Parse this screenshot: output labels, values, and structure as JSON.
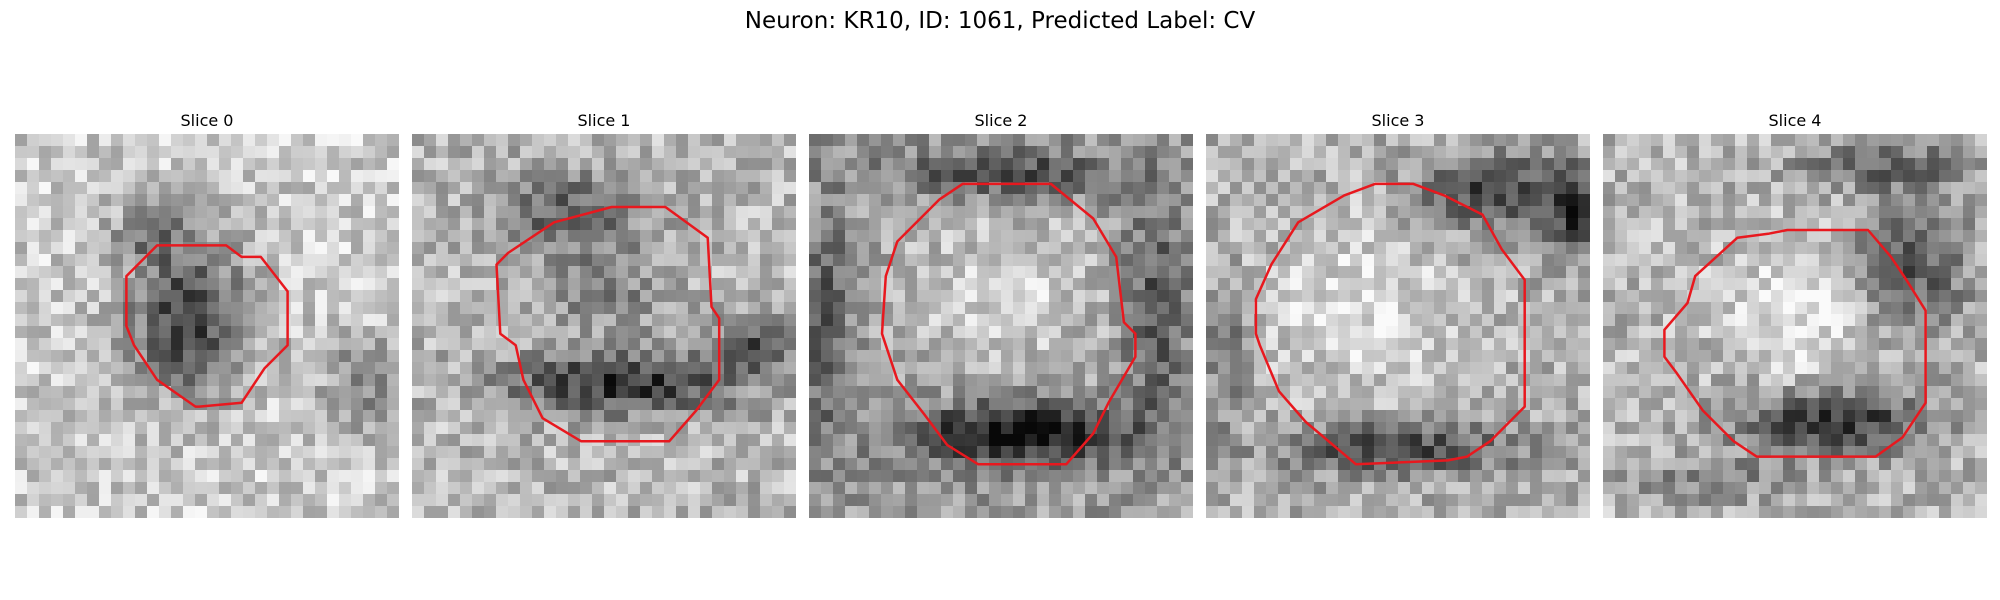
{
  "figure": {
    "title": "Neuron: KR10, ID: 1061, Predicted Label: CV"
  },
  "colors": {
    "background": "#ffffff",
    "contour": "#e8181e"
  },
  "panels": [
    {
      "title": "Slice 0",
      "contour": [
        [
          0.37,
          0.29
        ],
        [
          0.55,
          0.29
        ],
        [
          0.59,
          0.32
        ],
        [
          0.64,
          0.32
        ],
        [
          0.71,
          0.41
        ],
        [
          0.71,
          0.55
        ],
        [
          0.65,
          0.61
        ],
        [
          0.59,
          0.7
        ],
        [
          0.48,
          0.71
        ],
        [
          0.47,
          0.71
        ],
        [
          0.37,
          0.64
        ],
        [
          0.31,
          0.55
        ],
        [
          0.29,
          0.5
        ],
        [
          0.29,
          0.37
        ]
      ]
    },
    {
      "title": "Slice 1",
      "contour": [
        [
          0.37,
          0.23
        ],
        [
          0.52,
          0.19
        ],
        [
          0.66,
          0.19
        ],
        [
          0.77,
          0.27
        ],
        [
          0.78,
          0.45
        ],
        [
          0.8,
          0.48
        ],
        [
          0.8,
          0.64
        ],
        [
          0.74,
          0.72
        ],
        [
          0.67,
          0.8
        ],
        [
          0.44,
          0.8
        ],
        [
          0.34,
          0.74
        ],
        [
          0.29,
          0.64
        ],
        [
          0.27,
          0.55
        ],
        [
          0.23,
          0.52
        ],
        [
          0.22,
          0.34
        ],
        [
          0.25,
          0.31
        ]
      ]
    },
    {
      "title": "Slice 2",
      "contour": [
        [
          0.34,
          0.17
        ],
        [
          0.4,
          0.13
        ],
        [
          0.63,
          0.13
        ],
        [
          0.74,
          0.22
        ],
        [
          0.8,
          0.32
        ],
        [
          0.82,
          0.49
        ],
        [
          0.85,
          0.52
        ],
        [
          0.85,
          0.58
        ],
        [
          0.78,
          0.7
        ],
        [
          0.74,
          0.78
        ],
        [
          0.67,
          0.86
        ],
        [
          0.44,
          0.86
        ],
        [
          0.36,
          0.81
        ],
        [
          0.3,
          0.73
        ],
        [
          0.23,
          0.64
        ],
        [
          0.2,
          0.55
        ],
        [
          0.19,
          0.52
        ],
        [
          0.2,
          0.37
        ],
        [
          0.23,
          0.28
        ]
      ]
    },
    {
      "title": "Slice 3",
      "contour": [
        [
          0.36,
          0.16
        ],
        [
          0.44,
          0.13
        ],
        [
          0.54,
          0.13
        ],
        [
          0.62,
          0.16
        ],
        [
          0.72,
          0.21
        ],
        [
          0.77,
          0.3
        ],
        [
          0.83,
          0.38
        ],
        [
          0.83,
          0.71
        ],
        [
          0.74,
          0.8
        ],
        [
          0.68,
          0.84
        ],
        [
          0.63,
          0.85
        ],
        [
          0.39,
          0.86
        ],
        [
          0.26,
          0.75
        ],
        [
          0.19,
          0.67
        ],
        [
          0.14,
          0.55
        ],
        [
          0.13,
          0.52
        ],
        [
          0.13,
          0.43
        ],
        [
          0.17,
          0.34
        ],
        [
          0.24,
          0.23
        ]
      ]
    },
    {
      "title": "Slice 4",
      "contour": [
        [
          0.35,
          0.27
        ],
        [
          0.43,
          0.26
        ],
        [
          0.48,
          0.25
        ],
        [
          0.69,
          0.25
        ],
        [
          0.75,
          0.32
        ],
        [
          0.79,
          0.38
        ],
        [
          0.84,
          0.46
        ],
        [
          0.84,
          0.7
        ],
        [
          0.78,
          0.79
        ],
        [
          0.71,
          0.84
        ],
        [
          0.4,
          0.84
        ],
        [
          0.34,
          0.8
        ],
        [
          0.26,
          0.72
        ],
        [
          0.19,
          0.62
        ],
        [
          0.16,
          0.58
        ],
        [
          0.16,
          0.51
        ],
        [
          0.22,
          0.44
        ],
        [
          0.24,
          0.37
        ]
      ]
    }
  ]
}
